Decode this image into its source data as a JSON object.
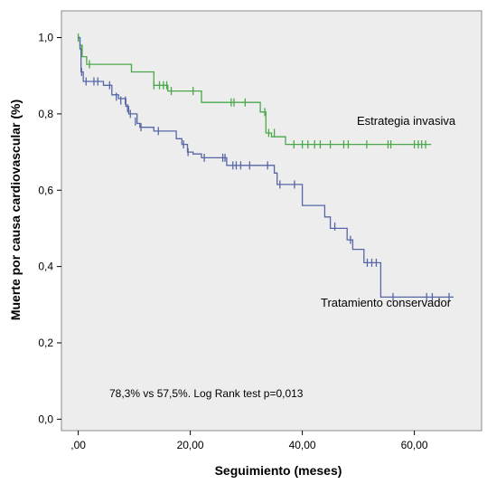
{
  "chart_data": {
    "type": "line",
    "subtype": "kaplan-meier step curve with censoring ticks",
    "xlabel": "Seguimiento (meses)",
    "ylabel": "Muerte por causa cardiovascular (%)",
    "xlim": [
      -3,
      72
    ],
    "ylim": [
      -0.03,
      1.07
    ],
    "x_ticks": [
      0,
      20,
      40,
      60
    ],
    "x_tick_labels": [
      ",00",
      "20,00",
      "40,00",
      "60,00"
    ],
    "y_ticks": [
      0.0,
      0.2,
      0.4,
      0.6,
      0.8,
      1.0
    ],
    "y_tick_labels": [
      "0,0",
      "0,2",
      "0,4",
      "0,6",
      "0,8",
      "1,0"
    ],
    "grid": false,
    "background": "#ededed",
    "annotation": "78,3% vs 57,5%. Log Rank test p=0,013",
    "series": [
      {
        "name": "Estrategia invasiva",
        "color": "#4aa84a",
        "steps": [
          [
            0,
            1.0
          ],
          [
            0.3,
            0.98
          ],
          [
            0.7,
            0.95
          ],
          [
            1.5,
            0.93
          ],
          [
            9.5,
            0.91
          ],
          [
            13.5,
            0.875
          ],
          [
            16,
            0.86
          ],
          [
            22,
            0.83
          ],
          [
            32.5,
            0.805
          ],
          [
            33.5,
            0.75
          ],
          [
            34.5,
            0.74
          ],
          [
            37,
            0.72
          ],
          [
            63,
            0.72
          ]
        ],
        "censored": [
          [
            0,
            1.0
          ],
          [
            0.6,
            0.97
          ],
          [
            2,
            0.93
          ],
          [
            13.5,
            0.875
          ],
          [
            14.5,
            0.875
          ],
          [
            15.2,
            0.875
          ],
          [
            15.8,
            0.875
          ],
          [
            16.6,
            0.86
          ],
          [
            20.5,
            0.86
          ],
          [
            27.3,
            0.83
          ],
          [
            27.8,
            0.83
          ],
          [
            29.8,
            0.83
          ],
          [
            33.3,
            0.805
          ],
          [
            34,
            0.75
          ],
          [
            35,
            0.75
          ],
          [
            38.5,
            0.72
          ],
          [
            40,
            0.72
          ],
          [
            41,
            0.72
          ],
          [
            42.2,
            0.72
          ],
          [
            43.2,
            0.72
          ],
          [
            45,
            0.72
          ],
          [
            47.4,
            0.72
          ],
          [
            48.2,
            0.72
          ],
          [
            51.5,
            0.72
          ],
          [
            55.3,
            0.72
          ],
          [
            55.8,
            0.72
          ],
          [
            60,
            0.72
          ],
          [
            60.7,
            0.72
          ],
          [
            61.3,
            0.72
          ],
          [
            62,
            0.72
          ]
        ]
      },
      {
        "name": "Tratamiento conservador",
        "color": "#5667a6",
        "steps": [
          [
            0,
            1.0
          ],
          [
            0.3,
            0.97
          ],
          [
            0.5,
            0.91
          ],
          [
            0.9,
            0.885
          ],
          [
            4.5,
            0.875
          ],
          [
            6,
            0.85
          ],
          [
            7.2,
            0.84
          ],
          [
            8.5,
            0.82
          ],
          [
            9,
            0.8
          ],
          [
            10.5,
            0.775
          ],
          [
            11,
            0.765
          ],
          [
            13.5,
            0.755
          ],
          [
            17.5,
            0.735
          ],
          [
            18.5,
            0.72
          ],
          [
            19.5,
            0.7
          ],
          [
            20.5,
            0.695
          ],
          [
            22,
            0.685
          ],
          [
            26.5,
            0.665
          ],
          [
            35,
            0.645
          ],
          [
            35.5,
            0.615
          ],
          [
            38,
            0.615
          ],
          [
            40,
            0.56
          ],
          [
            44,
            0.53
          ],
          [
            45,
            0.5
          ],
          [
            48,
            0.47
          ],
          [
            49,
            0.445
          ],
          [
            51,
            0.41
          ],
          [
            54,
            0.32
          ],
          [
            67,
            0.32
          ]
        ],
        "censored": [
          [
            0.6,
            0.91
          ],
          [
            1.4,
            0.885
          ],
          [
            2.8,
            0.885
          ],
          [
            3.5,
            0.885
          ],
          [
            5.6,
            0.875
          ],
          [
            6.8,
            0.845
          ],
          [
            7.6,
            0.835
          ],
          [
            8.4,
            0.835
          ],
          [
            8.8,
            0.815
          ],
          [
            9.3,
            0.8
          ],
          [
            10.2,
            0.78
          ],
          [
            11.2,
            0.765
          ],
          [
            14.3,
            0.755
          ],
          [
            18.8,
            0.72
          ],
          [
            19.6,
            0.7
          ],
          [
            22.5,
            0.685
          ],
          [
            25.8,
            0.685
          ],
          [
            26.2,
            0.685
          ],
          [
            27.6,
            0.665
          ],
          [
            28.2,
            0.665
          ],
          [
            29,
            0.665
          ],
          [
            30.6,
            0.665
          ],
          [
            33.8,
            0.665
          ],
          [
            36,
            0.615
          ],
          [
            38.6,
            0.615
          ],
          [
            45.8,
            0.505
          ],
          [
            48.6,
            0.47
          ],
          [
            51.6,
            0.41
          ],
          [
            52.4,
            0.41
          ],
          [
            53.2,
            0.41
          ],
          [
            56.2,
            0.32
          ],
          [
            62.2,
            0.32
          ],
          [
            63.2,
            0.32
          ],
          [
            66.2,
            0.32
          ]
        ]
      }
    ]
  }
}
